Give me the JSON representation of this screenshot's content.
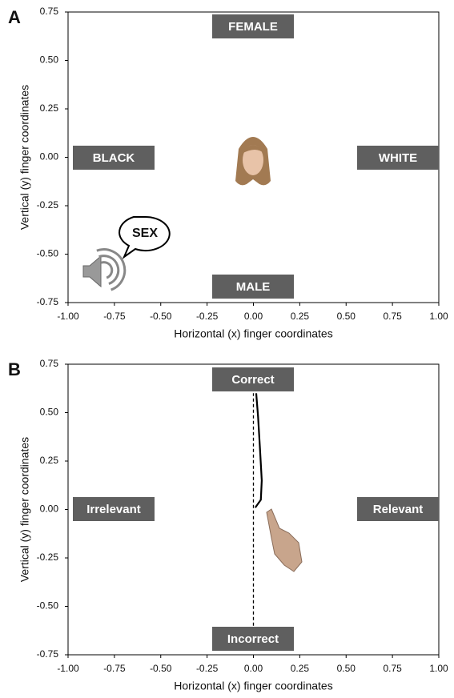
{
  "chart_data": [
    {
      "type": "line",
      "panel_label": "A",
      "x_label": "Horizontal (x) finger coordinates",
      "y_label": "Vertical (y) finger coordinates",
      "xlim": [
        -1,
        1
      ],
      "ylim": [
        -0.75,
        0.75
      ],
      "xticks": [
        {
          "value": -1,
          "label": "-1.00"
        },
        {
          "value": -0.75,
          "label": "-0.75"
        },
        {
          "value": -0.5,
          "label": "-0.50"
        },
        {
          "value": -0.25,
          "label": "-0.25"
        },
        {
          "value": 0,
          "label": "0.00"
        },
        {
          "value": 0.25,
          "label": "0.25"
        },
        {
          "value": 0.5,
          "label": "0.50"
        },
        {
          "value": 0.75,
          "label": "0.75"
        },
        {
          "value": 1,
          "label": "1.00"
        }
      ],
      "yticks": [
        {
          "value": 0.75,
          "label": "0.75"
        },
        {
          "value": 0.5,
          "label": "0.50"
        },
        {
          "value": 0.25,
          "label": "0.25"
        },
        {
          "value": 0,
          "label": "0.00"
        },
        {
          "value": -0.25,
          "label": "-0.25"
        },
        {
          "value": -0.5,
          "label": "-0.50"
        },
        {
          "value": -0.75,
          "label": "-0.75"
        }
      ],
      "annotations": [
        "FEMALE",
        "BLACK",
        "WHITE",
        "MALE",
        "SEX"
      ],
      "series": []
    },
    {
      "type": "line",
      "panel_label": "B",
      "x_label": "Horizontal (x) finger coordinates",
      "y_label": "Vertical (y) finger coordinates",
      "xlim": [
        -1,
        1
      ],
      "ylim": [
        -0.75,
        0.75
      ],
      "xticks": [
        {
          "value": -1,
          "label": "-1.00"
        },
        {
          "value": -0.75,
          "label": "-0.75"
        },
        {
          "value": -0.5,
          "label": "-0.50"
        },
        {
          "value": -0.25,
          "label": "-0.25"
        },
        {
          "value": 0,
          "label": "0.00"
        },
        {
          "value": 0.25,
          "label": "0.25"
        },
        {
          "value": 0.5,
          "label": "0.50"
        },
        {
          "value": 0.75,
          "label": "0.75"
        },
        {
          "value": 1,
          "label": "1.00"
        }
      ],
      "yticks": [
        {
          "value": 0.75,
          "label": "0.75"
        },
        {
          "value": 0.5,
          "label": "0.50"
        },
        {
          "value": 0.25,
          "label": "0.25"
        },
        {
          "value": 0,
          "label": "0.00"
        },
        {
          "value": -0.25,
          "label": "-0.25"
        },
        {
          "value": -0.5,
          "label": "-0.50"
        },
        {
          "value": -0.75,
          "label": "-0.75"
        }
      ],
      "annotations": [
        "Correct",
        "Irrelevant",
        "Relevant",
        "Incorrect"
      ],
      "series": [
        {
          "color": "#000000",
          "dash": "dashed",
          "x": [
            0,
            0
          ],
          "values": [
            -0.6,
            0.6
          ]
        },
        {
          "color": "#000000",
          "dash": "solid",
          "x": [
            0.01,
            0.04,
            0.045,
            0.035,
            0.025,
            0.015
          ],
          "values": [
            0.01,
            0.05,
            0.15,
            0.32,
            0.48,
            0.6
          ]
        }
      ]
    }
  ]
}
